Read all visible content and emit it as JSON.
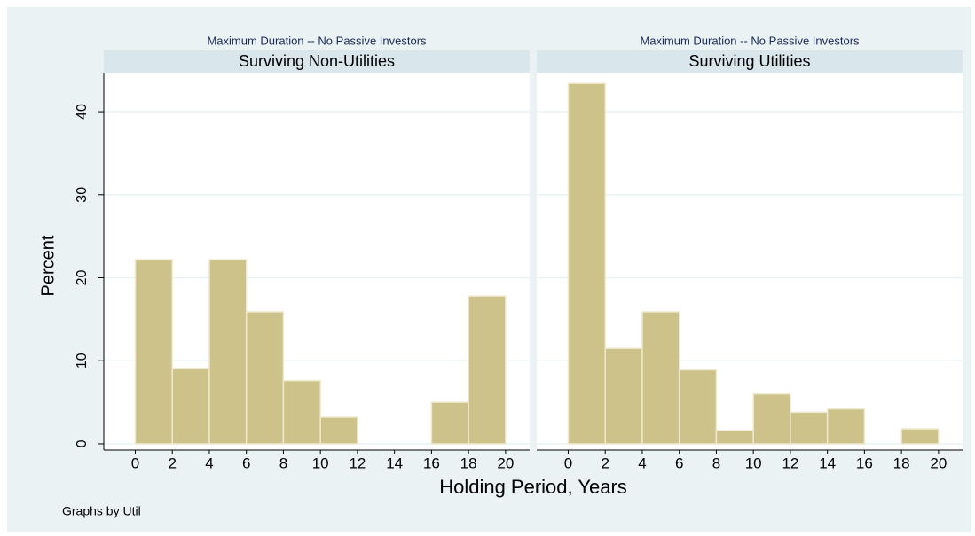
{
  "chart_data": [
    {
      "type": "histogram",
      "subtitle": "Maximum Duration -- No Passive Investors",
      "title": "Surviving Non-Utilities",
      "bins": [
        0,
        2,
        4,
        6,
        8,
        10,
        12,
        14,
        16,
        18,
        20
      ],
      "values": [
        22.2,
        9.1,
        22.2,
        15.9,
        7.6,
        3.2,
        0,
        0,
        5.0,
        17.8
      ],
      "color": "#cdc28a",
      "xlim": [
        -1.7,
        21.3
      ],
      "ylim": [
        -0.75,
        44.7
      ],
      "xticks": [
        0,
        2,
        4,
        6,
        8,
        10,
        12,
        14,
        16,
        18,
        20
      ],
      "yticks": [
        0,
        10,
        20,
        30,
        40
      ],
      "grid": true,
      "show_yticks": true
    },
    {
      "type": "histogram",
      "subtitle": "Maximum Duration -- No Passive Investors",
      "title": "Surviving Utilities",
      "bins": [
        0,
        2,
        4,
        6,
        8,
        10,
        12,
        14,
        16,
        18,
        20
      ],
      "values": [
        43.4,
        11.5,
        15.9,
        8.9,
        1.6,
        6.0,
        3.8,
        4.2,
        0,
        1.8
      ],
      "color": "#cdc28a",
      "xlim": [
        -1.7,
        21.3
      ],
      "ylim": [
        -0.75,
        44.7
      ],
      "xticks": [
        0,
        2,
        4,
        6,
        8,
        10,
        12,
        14,
        16,
        18,
        20
      ],
      "yticks": [
        0,
        10,
        20,
        30,
        40
      ],
      "grid": true,
      "show_yticks": false
    }
  ],
  "y_label": "Percent",
  "x_label": "Holding Period, Years",
  "note": "Graphs by Util"
}
